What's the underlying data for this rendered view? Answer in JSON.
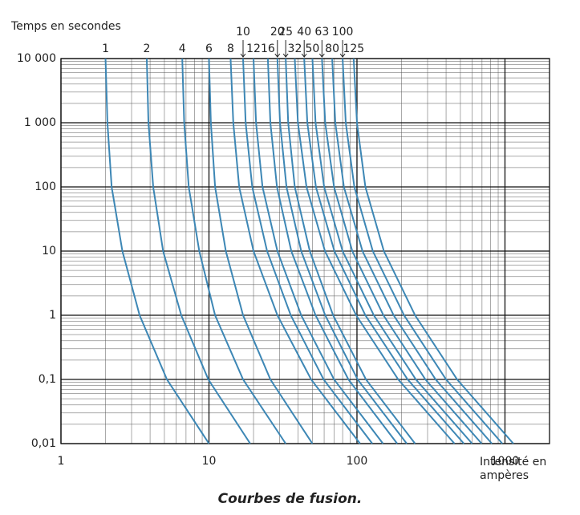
{
  "chart_data": {
    "type": "line",
    "y_label": "Temps en secondes",
    "x_label": "Intensité en ampères",
    "caption": "Courbes de fusion.",
    "log_x": true,
    "log_y": true,
    "grid": true,
    "xlim": [
      1,
      2000
    ],
    "ylim": [
      0.01,
      10000
    ],
    "xticks": [
      1,
      10,
      100,
      1000
    ],
    "yticks": [
      {
        "value": 10000,
        "label": "10 000"
      },
      {
        "value": 1000,
        "label": "1 000"
      },
      100,
      10,
      1,
      {
        "value": 0.1,
        "label": "0,1"
      },
      {
        "value": 0.01,
        "label": "0,01"
      }
    ],
    "series": [
      {
        "name": "1",
        "color": "#3d87b5",
        "x": [
          2,
          2.06,
          2.2,
          2.6,
          3.4,
          5.2,
          10
        ],
        "values": [
          10000,
          1000,
          100,
          10,
          1,
          0.1,
          0.01
        ]
      },
      {
        "name": "2",
        "color": "#3d87b5",
        "x": [
          3.8,
          3.9,
          4.2,
          4.9,
          6.5,
          9.9,
          19
        ],
        "values": [
          10000,
          1000,
          100,
          10,
          1,
          0.1,
          0.01
        ]
      },
      {
        "name": "4",
        "color": "#3d87b5",
        "x": [
          6.6,
          6.8,
          7.3,
          8.6,
          11,
          17,
          33
        ],
        "values": [
          10000,
          1000,
          100,
          10,
          1,
          0.1,
          0.01
        ]
      },
      {
        "name": "6",
        "color": "#3d87b5",
        "x": [
          10,
          10.3,
          11,
          13,
          17,
          26,
          50
        ],
        "values": [
          10000,
          1000,
          100,
          10,
          1,
          0.1,
          0.01
        ]
      },
      {
        "name": "8",
        "color": "#3d87b5",
        "x": [
          14,
          14.6,
          16,
          20,
          29,
          49,
          105
        ],
        "values": [
          10000,
          1000,
          100,
          10,
          1,
          0.1,
          0.01
        ]
      },
      {
        "name": "10",
        "color": "#3d87b5",
        "x": [
          17,
          17.7,
          19.6,
          24.7,
          35.7,
          59.5,
          127
        ],
        "values": [
          10000,
          1000,
          100,
          10,
          1,
          0.1,
          0.01
        ]
      },
      {
        "name": "12",
        "color": "#3d87b5",
        "x": [
          20,
          20.8,
          23,
          29,
          42,
          70,
          150
        ],
        "values": [
          10000,
          1000,
          100,
          10,
          1,
          0.1,
          0.01
        ]
      },
      {
        "name": "16",
        "color": "#3d87b5",
        "x": [
          25,
          26,
          28.8,
          36,
          52.5,
          87.5,
          187
        ],
        "values": [
          10000,
          1000,
          100,
          10,
          1,
          0.1,
          0.01
        ]
      },
      {
        "name": "20",
        "color": "#3d87b5",
        "x": [
          29,
          30.2,
          33.4,
          42,
          61,
          101,
          217
        ],
        "values": [
          10000,
          1000,
          100,
          10,
          1,
          0.1,
          0.01
        ]
      },
      {
        "name": "25",
        "color": "#3d87b5",
        "x": [
          33,
          34.3,
          38,
          48,
          69,
          115,
          247
        ],
        "values": [
          10000,
          1000,
          100,
          10,
          1,
          0.1,
          0.01
        ]
      },
      {
        "name": "32",
        "color": "#3d87b5",
        "x": [
          38,
          39.9,
          45.6,
          60.8,
          98.8,
          190,
          456
        ],
        "values": [
          10000,
          1000,
          100,
          10,
          1,
          0.1,
          0.01
        ]
      },
      {
        "name": "40",
        "color": "#3d87b5",
        "x": [
          44,
          46.2,
          52.8,
          70.4,
          114,
          220,
          528
        ],
        "values": [
          10000,
          1000,
          100,
          10,
          1,
          0.1,
          0.01
        ]
      },
      {
        "name": "50",
        "color": "#3d87b5",
        "x": [
          50,
          52.5,
          60,
          80,
          130,
          250,
          600
        ],
        "values": [
          10000,
          1000,
          100,
          10,
          1,
          0.1,
          0.01
        ]
      },
      {
        "name": "63",
        "color": "#3d87b5",
        "x": [
          58,
          61,
          70,
          93,
          151,
          290,
          696
        ],
        "values": [
          10000,
          1000,
          100,
          10,
          1,
          0.1,
          0.01
        ]
      },
      {
        "name": "80",
        "color": "#3d87b5",
        "x": [
          68,
          71.4,
          81.6,
          109,
          177,
          340,
          816
        ],
        "values": [
          10000,
          1000,
          100,
          10,
          1,
          0.1,
          0.01
        ]
      },
      {
        "name": "100",
        "color": "#3d87b5",
        "x": [
          80,
          84,
          96,
          128,
          208,
          400,
          960
        ],
        "values": [
          10000,
          1000,
          100,
          10,
          1,
          0.1,
          0.01
        ]
      },
      {
        "name": "125",
        "color": "#3d87b5",
        "x": [
          95,
          100,
          114,
          152,
          247,
          475,
          1140
        ],
        "values": [
          10000,
          1000,
          100,
          10,
          1,
          0.1,
          0.01
        ]
      }
    ]
  }
}
